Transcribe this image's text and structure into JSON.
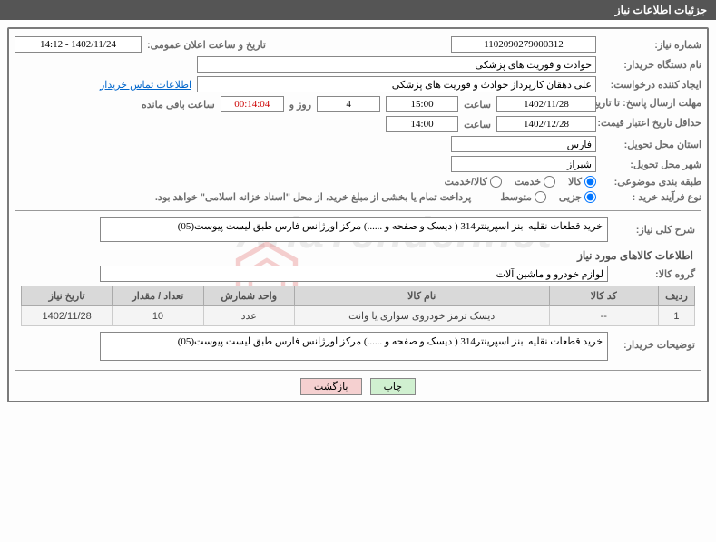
{
  "header": {
    "title": "جزئیات اطلاعات نیاز"
  },
  "fields": {
    "need_no_label": "شماره نیاز:",
    "need_no": "1102090279000312",
    "announce_label": "تاریخ و ساعت اعلان عمومی:",
    "announce_value": "1402/11/24 - 14:12",
    "buyer_label": "نام دستگاه خریدار:",
    "buyer_value": "حوادث و فوریت های پزشکی",
    "requester_label": "ایجاد کننده درخواست:",
    "requester_value": "علی دهقان کارپرداز حوادث و فوریت های پزشکی",
    "contact_link": "اطلاعات تماس خریدار",
    "deadline_label": "مهلت ارسال پاسخ: تا تاریخ:",
    "deadline_date": "1402/11/28",
    "time_label": "ساعت",
    "deadline_time": "15:00",
    "days_value": "4",
    "days_and": "روز و",
    "countdown": "00:14:04",
    "remain_label": "ساعت باقی مانده",
    "validity_label": "حداقل تاریخ اعتبار قیمت: تا تاریخ:",
    "validity_date": "1402/12/28",
    "validity_time": "14:00",
    "province_label": "استان محل تحویل:",
    "province_value": "فارس",
    "city_label": "شهر محل تحویل:",
    "city_value": "شیراز",
    "category_label": "طبقه بندی موضوعی:",
    "process_label": "نوع فرآیند خرید :",
    "payment_note": "پرداخت تمام یا بخشی از مبلغ خرید، از محل \"اسناد خزانه اسلامی\" خواهد بود."
  },
  "radios": {
    "cat_goods": "کالا",
    "cat_service": "خدمت",
    "cat_both": "کالا/خدمت",
    "proc_partial": "جزیی",
    "proc_medium": "متوسط"
  },
  "summary": {
    "label": "شرح کلی نیاز:",
    "value": "خرید قطعات نقلیه  بنز اسپرینتر314 ( دیسک و صفحه و ......) مرکز اورژانس فارس طبق لیست پیوست(05)"
  },
  "goods_section_title": "اطلاعات کالاهای مورد نیاز",
  "goods_group": {
    "label": "گروه کالا:",
    "value": "لوازم خودرو و ماشین آلات"
  },
  "table": {
    "headers": [
      "ردیف",
      "کد کالا",
      "نام کالا",
      "واحد شمارش",
      "تعداد / مقدار",
      "تاریخ نیاز"
    ],
    "widths": [
      40,
      120,
      280,
      100,
      100,
      100
    ],
    "rows": [
      [
        "1",
        "--",
        "دیسک ترمز خودروی سواری یا وانت",
        "عدد",
        "10",
        "1402/11/28"
      ]
    ]
  },
  "buyer_desc": {
    "label": "توضیحات خریدار:",
    "value": "خرید قطعات نقلیه  بنز اسپرینتر314 ( دیسک و صفحه و ......) مرکز اورژانس فارس طبق لیست پیوست(05)"
  },
  "buttons": {
    "print": "چاپ",
    "back": "بازگشت"
  },
  "colors": {
    "header_bg": "#555555",
    "border": "#7a7a7a",
    "label": "#6d6d6d",
    "th_bg": "#d9d9d9",
    "td_bg": "#f4f4f4",
    "link": "#0066cc"
  }
}
